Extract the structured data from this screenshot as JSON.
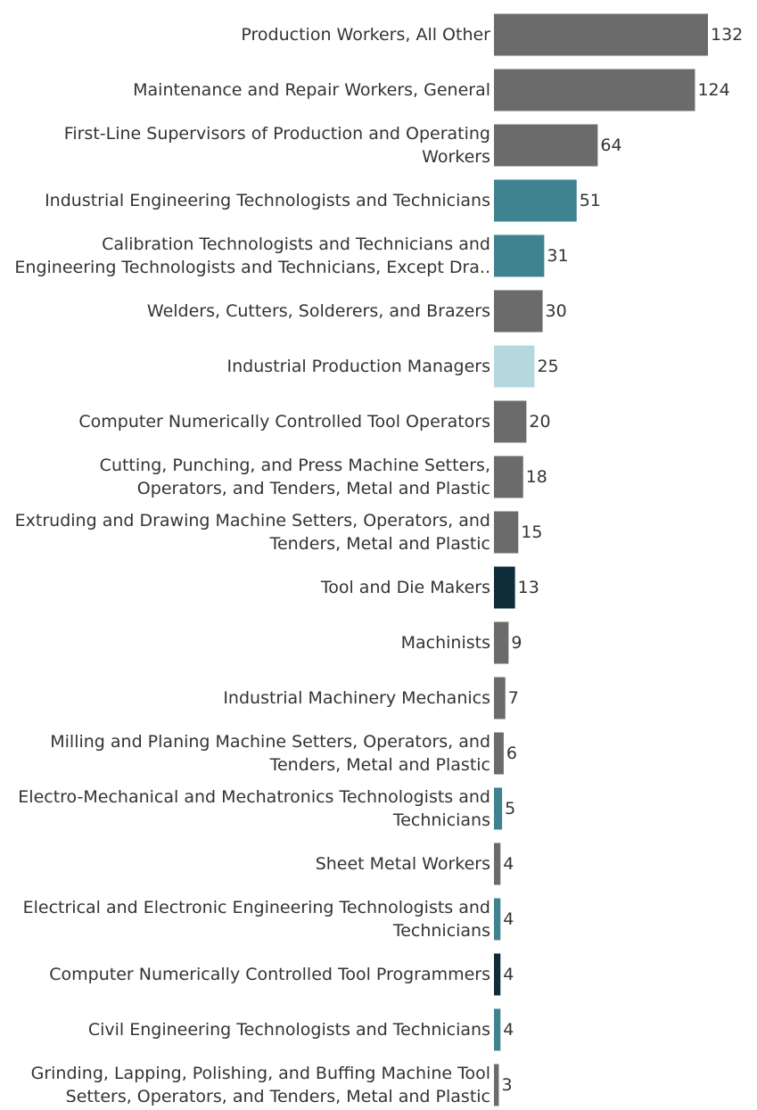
{
  "chart_data": {
    "type": "bar",
    "orientation": "horizontal",
    "title": "",
    "xlabel": "",
    "ylabel": "",
    "xlim": [
      0,
      132
    ],
    "grid": false,
    "legend": "none",
    "colors": {
      "gray": "#6b6b6b",
      "teal": "#3f8290",
      "light_teal": "#b5d8de",
      "dark": "#0f2d38"
    },
    "categories": [
      [
        "Production Workers, All Other"
      ],
      [
        "Maintenance and Repair Workers, General"
      ],
      [
        "First-Line Supervisors of Production and Operating",
        "Workers"
      ],
      [
        "Industrial Engineering Technologists and Technicians"
      ],
      [
        "Calibration Technologists and Technicians and",
        "Engineering Technologists and Technicians, Except Dra.."
      ],
      [
        "Welders, Cutters, Solderers, and Brazers"
      ],
      [
        "Industrial Production Managers"
      ],
      [
        "Computer Numerically Controlled Tool Operators"
      ],
      [
        "Cutting, Punching, and Press Machine Setters,",
        "Operators, and Tenders, Metal and Plastic"
      ],
      [
        "Extruding and Drawing Machine Setters, Operators, and",
        "Tenders, Metal and Plastic"
      ],
      [
        "Tool and Die Makers"
      ],
      [
        "Machinists"
      ],
      [
        "Industrial Machinery Mechanics"
      ],
      [
        "Milling and Planing Machine Setters, Operators, and",
        "Tenders, Metal and Plastic"
      ],
      [
        "Electro-Mechanical and Mechatronics Technologists and",
        "Technicians"
      ],
      [
        "Sheet Metal Workers"
      ],
      [
        "Electrical and Electronic Engineering Technologists and",
        "Technicians"
      ],
      [
        "Computer Numerically Controlled Tool Programmers"
      ],
      [
        "Civil Engineering Technologists and Technicians"
      ],
      [
        "Grinding, Lapping, Polishing, and Buffing Machine Tool",
        "Setters, Operators, and Tenders, Metal and Plastic"
      ]
    ],
    "values": [
      132,
      124,
      64,
      51,
      31,
      30,
      25,
      20,
      18,
      15,
      13,
      9,
      7,
      6,
      5,
      4,
      4,
      4,
      4,
      3
    ],
    "bar_colors": [
      "#6b6b6b",
      "#6b6b6b",
      "#6b6b6b",
      "#3f8290",
      "#3f8290",
      "#6b6b6b",
      "#b5d8de",
      "#6b6b6b",
      "#6b6b6b",
      "#6b6b6b",
      "#0f2d38",
      "#6b6b6b",
      "#6b6b6b",
      "#6b6b6b",
      "#3f8290",
      "#6b6b6b",
      "#3f8290",
      "#0f2d38",
      "#3f8290",
      "#6b6b6b"
    ]
  }
}
